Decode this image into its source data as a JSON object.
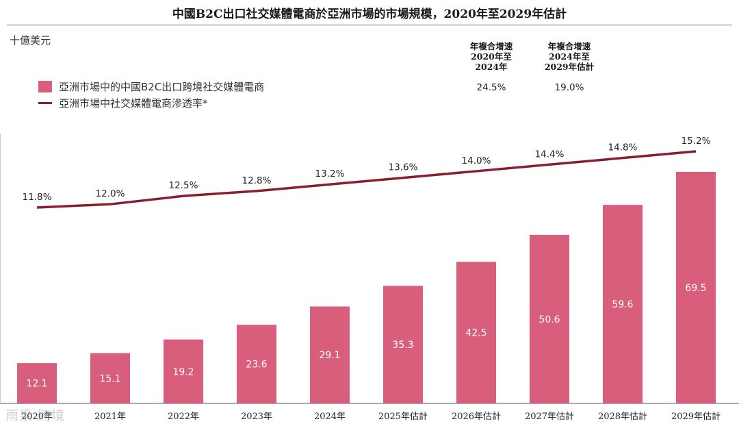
{
  "title": "中國B2C出口社交媒體電商於亞洲市場的市場規模，2020年至2029年估計",
  "unit_label": "十億美元",
  "legend": {
    "bar_label": "亞洲市場中的中國B2C出口跨境社交媒體電商",
    "line_label": "亞洲市場中社交媒體電商滲透率*"
  },
  "cagr": [
    {
      "line1": "年複合增速",
      "line2": "2020年至",
      "line3": "2024年",
      "value": "24.5%"
    },
    {
      "line1": "年複合增速",
      "line2": "2024年至",
      "line3": "2029年估計",
      "value": "19.0%"
    }
  ],
  "watermark": "雨果 跨境",
  "colors": {
    "bar": "#d95e7c",
    "line": "#8b1e2e",
    "axis": "#555555"
  },
  "chart_data": {
    "type": "bar",
    "categories": [
      "2020年",
      "2021年",
      "2022年",
      "2023年",
      "2024年",
      "2025年估計",
      "2026年估計",
      "2027年估計",
      "2028年估計",
      "2029年估計"
    ],
    "series": [
      {
        "name": "亞洲市場中的中國B2C出口跨境社交媒體電商",
        "type": "bar",
        "unit": "十億美元",
        "values": [
          12.1,
          15.1,
          19.2,
          23.6,
          29.1,
          35.3,
          42.5,
          50.6,
          59.6,
          69.5
        ],
        "labels": [
          "12.1",
          "15.1",
          "19.2",
          "23.6",
          "29.1",
          "35.3",
          "42.5",
          "50.6",
          "59.6",
          "69.5"
        ]
      },
      {
        "name": "亞洲市場中社交媒體電商滲透率*",
        "type": "line",
        "unit": "%",
        "values": [
          11.8,
          12.0,
          12.5,
          12.8,
          13.2,
          13.6,
          14.0,
          14.4,
          14.8,
          15.2
        ],
        "labels": [
          "11.8%",
          "12.0%",
          "12.5%",
          "12.8%",
          "13.2%",
          "13.6%",
          "14.0%",
          "14.4%",
          "14.8%",
          "15.2%"
        ]
      }
    ],
    "bar_ylim": [
      0,
      80
    ],
    "line_ylim": [
      8.8,
      15.9
    ]
  }
}
